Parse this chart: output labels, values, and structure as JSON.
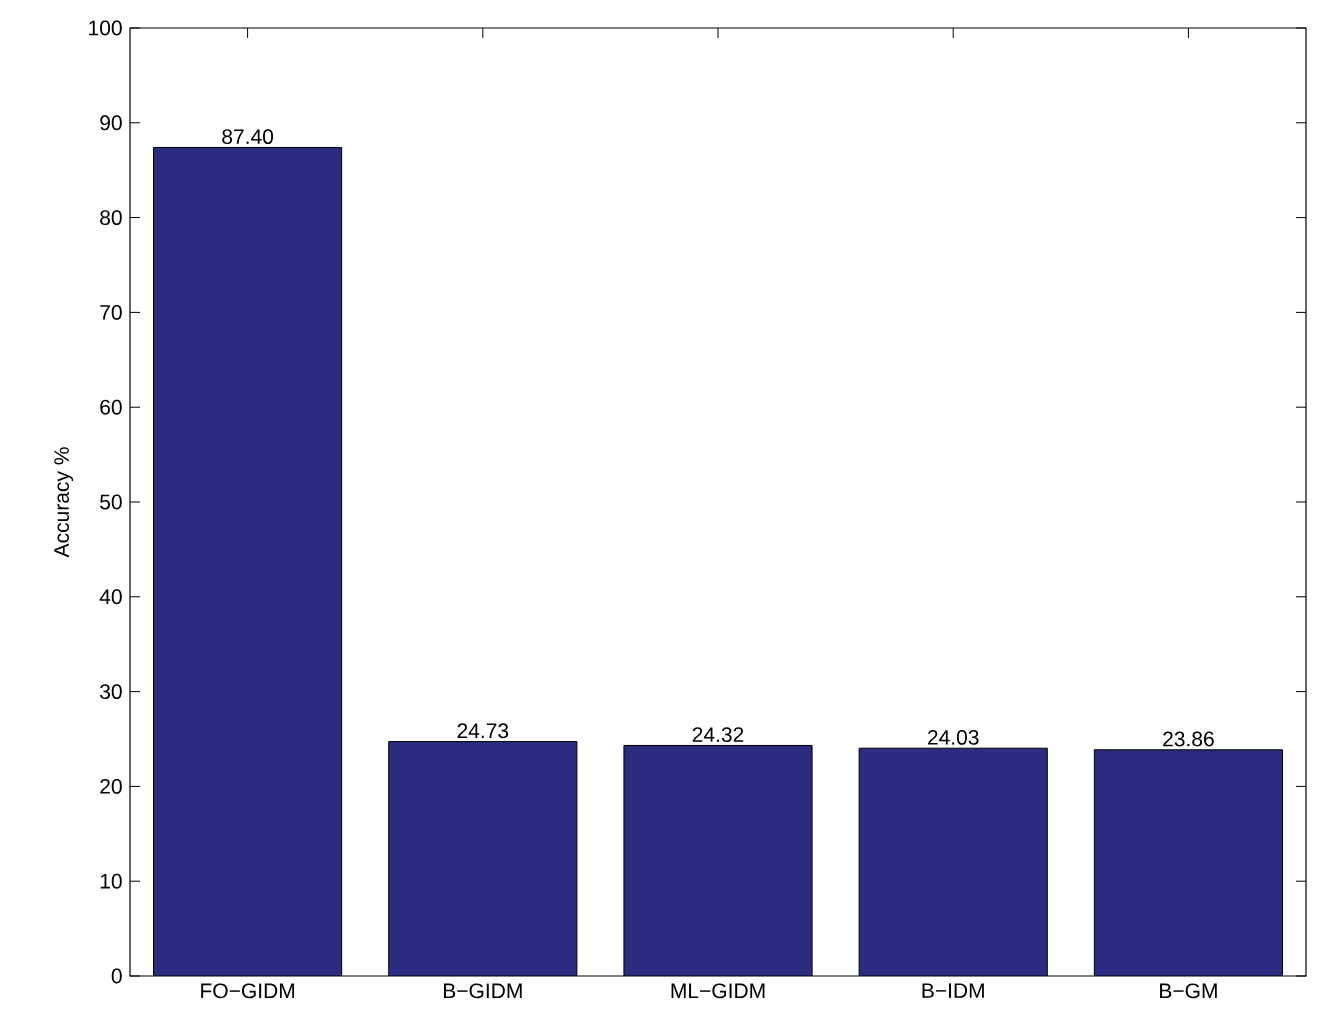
{
  "chart_data": {
    "type": "bar",
    "ylabel": "Accuracy %",
    "categories": [
      "FO−GIDM",
      "B−GIDM",
      "ML−GIDM",
      "B−IDM",
      "B−GM"
    ],
    "values": [
      87.4,
      24.73,
      24.32,
      24.03,
      23.86
    ],
    "value_labels": [
      "87.40",
      "24.73",
      "24.32",
      "24.03",
      "23.86"
    ],
    "color": "#2b2b80",
    "ylim": [
      0,
      100
    ],
    "yticks": [
      0,
      10,
      20,
      30,
      40,
      50,
      60,
      70,
      80,
      90,
      100
    ]
  }
}
